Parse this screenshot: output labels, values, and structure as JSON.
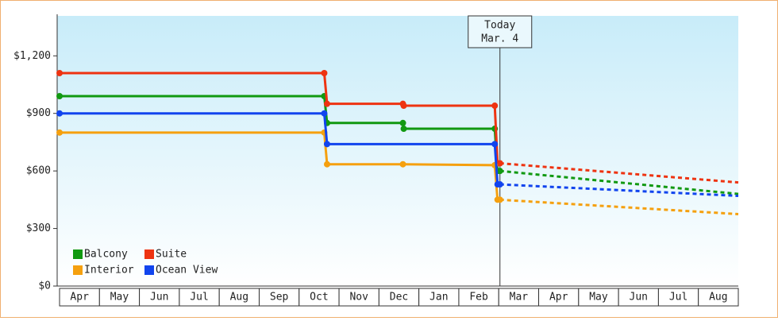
{
  "chart_data": {
    "type": "step-line",
    "categories": [
      "Apr",
      "May",
      "Jun",
      "Jul",
      "Aug",
      "Sep",
      "Oct",
      "Nov",
      "Dec",
      "Jan",
      "Feb",
      "Mar",
      "Apr",
      "May",
      "Jun",
      "Jul",
      "Aug"
    ],
    "xlim": [
      -0.06,
      17
    ],
    "ylim": [
      0,
      1400
    ],
    "yticks": [
      {
        "value": 0,
        "label": "$0"
      },
      {
        "value": 300,
        "label": "$300"
      },
      {
        "value": 600,
        "label": "$600"
      },
      {
        "value": 900,
        "label": "$900"
      },
      {
        "value": 1200,
        "label": "$1,200"
      }
    ],
    "legend": "lower left",
    "annotation": {
      "x": 11.03,
      "lines": [
        "Today",
        "Mar. 4"
      ]
    },
    "series": [
      {
        "name": "Balcony",
        "color": "#119911",
        "x": [
          0,
          6.63,
          6.7,
          8.6,
          8.62,
          10.9,
          10.97,
          11.03
        ],
        "values": [
          990,
          990,
          850,
          850,
          820,
          820,
          600,
          600
        ],
        "forecast": {
          "x": [
            11.03,
            17
          ],
          "values": [
            600,
            480
          ]
        }
      },
      {
        "name": "Suite",
        "color": "#ee3311",
        "x": [
          0,
          6.63,
          6.7,
          8.6,
          8.62,
          10.9,
          10.97,
          11.03
        ],
        "values": [
          1110,
          1110,
          950,
          950,
          940,
          940,
          640,
          640
        ],
        "forecast": {
          "x": [
            11.03,
            17
          ],
          "values": [
            640,
            540
          ]
        }
      },
      {
        "name": "Interior",
        "color": "#f5a00f",
        "x": [
          0,
          6.63,
          6.7,
          8.6,
          10.9,
          10.97,
          11.03
        ],
        "values": [
          800,
          800,
          635,
          635,
          630,
          450,
          450
        ],
        "forecast": {
          "x": [
            11.03,
            17
          ],
          "values": [
            450,
            375
          ]
        }
      },
      {
        "name": "Ocean View",
        "color": "#1144ee",
        "x": [
          0,
          6.63,
          6.7,
          10.9,
          10.97,
          11.03
        ],
        "values": [
          900,
          900,
          740,
          740,
          530,
          530
        ],
        "forecast": {
          "x": [
            11.03,
            17
          ],
          "values": [
            530,
            470
          ]
        }
      }
    ]
  }
}
